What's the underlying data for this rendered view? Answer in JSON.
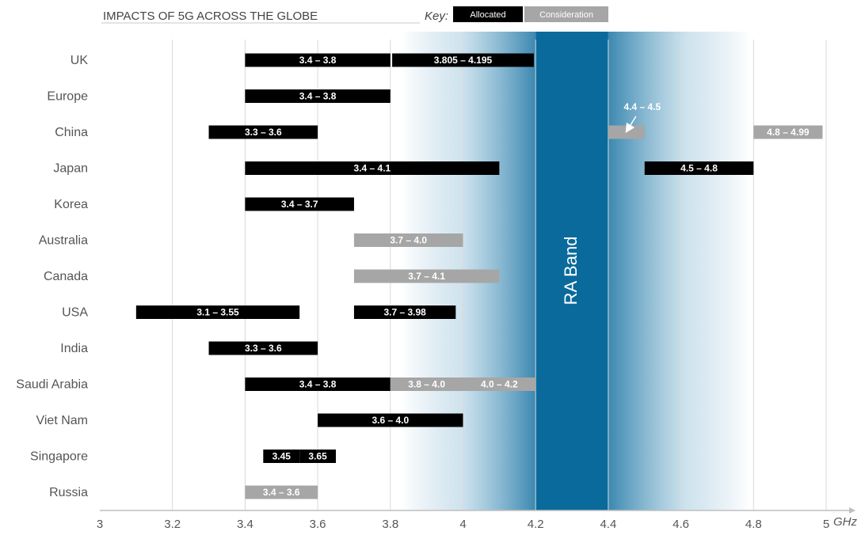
{
  "chart_data": {
    "type": "bar",
    "orientation": "horizontal-range",
    "title": "IMPACTS OF 5G ACROSS THE GLOBE",
    "key_label": "Key:",
    "legend": [
      {
        "name": "Allocated",
        "color": "#000000"
      },
      {
        "name": "Consideration",
        "color": "#a6a6a6"
      }
    ],
    "x_unit": "GHz",
    "xlim": [
      3,
      5
    ],
    "ticks": [
      {
        "value": 3,
        "label": "3"
      },
      {
        "value": 3.2,
        "label": "3.2"
      },
      {
        "value": 3.4,
        "label": "3.4"
      },
      {
        "value": 3.6,
        "label": "3.6"
      },
      {
        "value": 3.8,
        "label": "3.8"
      },
      {
        "value": 4,
        "label": "4"
      },
      {
        "value": 4.2,
        "label": "4.2"
      },
      {
        "value": 4.4,
        "label": "4.4"
      },
      {
        "value": 4.6,
        "label": "4.6"
      },
      {
        "value": 4.8,
        "label": "4.8"
      },
      {
        "value": 5,
        "label": "5"
      }
    ],
    "grid": true,
    "highlight_band": {
      "label": "RA Band",
      "start": 4.2,
      "end": 4.4,
      "color": "#0a6a9c"
    },
    "countries": [
      "UK",
      "Europe",
      "China",
      "Japan",
      "Korea",
      "Australia",
      "Canada",
      "USA",
      "India",
      "Saudi Arabia",
      "Viet Nam",
      "Singapore",
      "Russia"
    ],
    "ranges": [
      {
        "country": "UK",
        "start": 3.4,
        "end": 3.8,
        "status": "allocated",
        "label": "3.4 – 3.8"
      },
      {
        "country": "UK",
        "start": 3.805,
        "end": 4.195,
        "status": "allocated",
        "label": "3.805 – 4.195"
      },
      {
        "country": "Europe",
        "start": 3.4,
        "end": 3.8,
        "status": "allocated",
        "label": "3.4 – 3.8"
      },
      {
        "country": "China",
        "start": 3.3,
        "end": 3.6,
        "status": "allocated",
        "label": "3.3 – 3.6"
      },
      {
        "country": "China",
        "start": 4.4,
        "end": 4.5,
        "status": "consideration",
        "label": ""
      },
      {
        "country": "China",
        "start": 4.8,
        "end": 4.99,
        "status": "consideration",
        "label": "4.8 – 4.99"
      },
      {
        "country": "Japan",
        "start": 3.4,
        "end": 4.1,
        "status": "allocated",
        "label": "3.4 – 4.1"
      },
      {
        "country": "Japan",
        "start": 4.5,
        "end": 4.8,
        "status": "allocated",
        "label": "4.5 – 4.8"
      },
      {
        "country": "Korea",
        "start": 3.4,
        "end": 3.7,
        "status": "allocated",
        "label": "3.4 – 3.7"
      },
      {
        "country": "Australia",
        "start": 3.7,
        "end": 4.0,
        "status": "consideration",
        "label": "3.7 – 4.0"
      },
      {
        "country": "Canada",
        "start": 3.7,
        "end": 4.1,
        "status": "consideration",
        "label": "3.7 – 4.1"
      },
      {
        "country": "USA",
        "start": 3.1,
        "end": 3.55,
        "status": "allocated",
        "label": "3.1 – 3.55"
      },
      {
        "country": "USA",
        "start": 3.7,
        "end": 3.98,
        "status": "allocated",
        "label": "3.7 – 3.98"
      },
      {
        "country": "India",
        "start": 3.3,
        "end": 3.6,
        "status": "allocated",
        "label": "3.3 – 3.6"
      },
      {
        "country": "Saudi Arabia",
        "start": 3.4,
        "end": 3.8,
        "status": "allocated",
        "label": "3.4 – 3.8"
      },
      {
        "country": "Saudi Arabia",
        "start": 3.8,
        "end": 4.0,
        "status": "consideration",
        "label": "3.8 – 4.0"
      },
      {
        "country": "Saudi Arabia",
        "start": 4.0,
        "end": 4.2,
        "status": "consideration",
        "label": "4.0 – 4.2"
      },
      {
        "country": "Viet Nam",
        "start": 3.6,
        "end": 4.0,
        "status": "allocated",
        "label": "3.6 – 4.0"
      },
      {
        "country": "Singapore",
        "start": 3.45,
        "end": 3.55,
        "status": "allocated",
        "label": "3.45"
      },
      {
        "country": "Singapore",
        "start": 3.55,
        "end": 3.65,
        "status": "allocated",
        "label": "3.65"
      },
      {
        "country": "Russia",
        "start": 3.4,
        "end": 3.6,
        "status": "consideration",
        "label": "3.4 – 3.6"
      }
    ],
    "annotations": [
      {
        "country": "China",
        "text": "4.4 – 4.5",
        "points_to": 4.45
      }
    ]
  }
}
